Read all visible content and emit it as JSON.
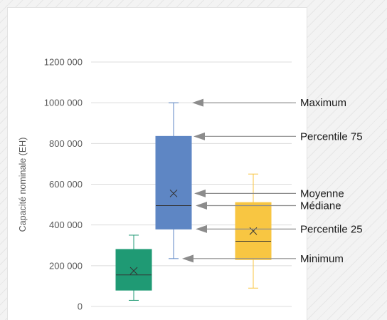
{
  "chart_data": {
    "type": "box",
    "title": "",
    "xlabel": "",
    "ylabel": "Capacité nominale (EH)",
    "ylim": [
      0,
      1200000
    ],
    "yticks": [
      0,
      200000,
      400000,
      600000,
      800000,
      1000000,
      1200000
    ],
    "ytick_labels": [
      "0",
      "200 000",
      "400 000",
      "600 000",
      "800 000",
      "1000 000",
      "1200 000"
    ],
    "grid": true,
    "series": [
      {
        "min": 30000,
        "q1": 80000,
        "median": 155000,
        "mean": 175000,
        "q3": 280000,
        "max": 350000,
        "color": "#1f9a74",
        "stroke": "#1f9a74",
        "whisker": "#1f9a74"
      },
      {
        "min": 235000,
        "q1": 380000,
        "median": 495000,
        "mean": 555000,
        "q3": 835000,
        "max": 1000000,
        "color": "#5e86c4",
        "stroke": "#5e86c4",
        "whisker": "#5e86c4"
      },
      {
        "min": 90000,
        "q1": 230000,
        "median": 320000,
        "mean": 370000,
        "q3": 510000,
        "max": 650000,
        "color": "#f8c642",
        "stroke": "#f8c642",
        "whisker": "#f8c642"
      }
    ],
    "annotations": [
      {
        "label": "Maximum",
        "value": 1000000
      },
      {
        "label": "Percentile 75",
        "value": 835000
      },
      {
        "label": "Moyenne",
        "value": 555000
      },
      {
        "label": "Médiane",
        "value": 495000
      },
      {
        "label": "Percentile 25",
        "value": 380000
      },
      {
        "label": "Minimum",
        "value": 235000
      }
    ]
  },
  "colors": {
    "gridline": "#dcdcdc",
    "arrow": "#8c8c8c",
    "tick_text": "#595959"
  }
}
